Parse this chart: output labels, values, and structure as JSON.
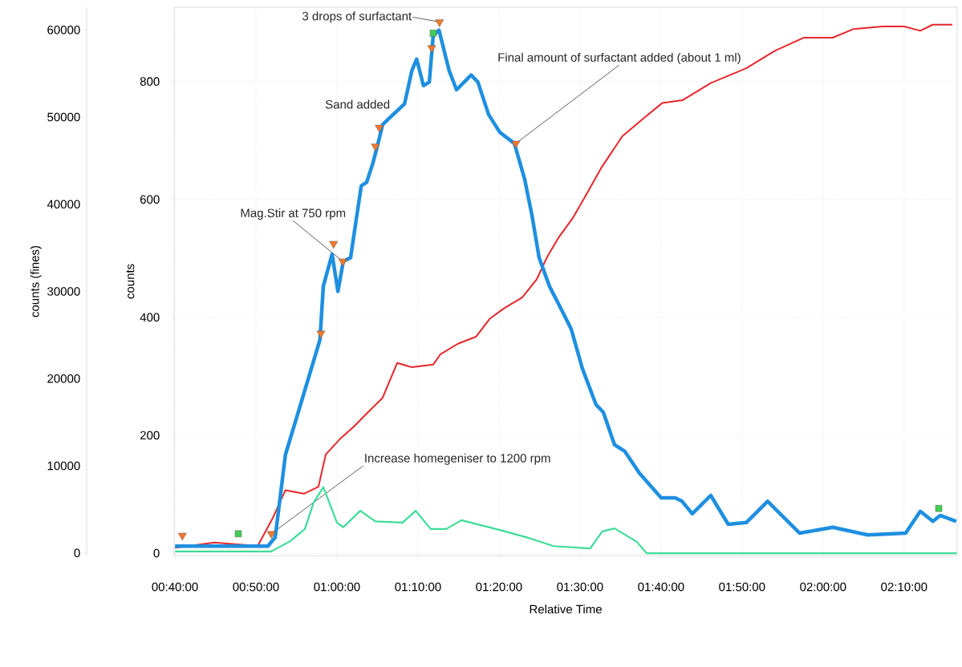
{
  "chart_data": {
    "type": "line",
    "xlabel": "Relative Time",
    "ylabel": "counts",
    "y2label": "counts (fines)",
    "grid": true,
    "xlim": [
      0.665,
      2.276
    ],
    "xticks": [
      {
        "value": 0.6667,
        "label": "00:40:00"
      },
      {
        "value": 0.8333,
        "label": "00:50:00"
      },
      {
        "value": 1.0,
        "label": "01:00:00"
      },
      {
        "value": 1.1667,
        "label": "01:10:00"
      },
      {
        "value": 1.3333,
        "label": "01:20:00"
      },
      {
        "value": 1.5,
        "label": "01:30:00"
      },
      {
        "value": 1.6667,
        "label": "01:40:00"
      },
      {
        "value": 1.8333,
        "label": "01:50:00"
      },
      {
        "value": 2.0,
        "label": "02:00:00"
      },
      {
        "value": 2.1667,
        "label": "02:10:00"
      }
    ],
    "ylim": [
      -4,
      926
    ],
    "yticks": [
      0,
      200,
      400,
      600,
      800
    ],
    "y2lim": [
      -300,
      62600
    ],
    "y2ticks": [
      0,
      10000,
      20000,
      30000,
      40000,
      50000,
      60000
    ],
    "series": [
      {
        "axis": "y2",
        "color": "#e8262b",
        "x": [
          0.667,
          0.748,
          0.837,
          0.867,
          0.894,
          0.932,
          0.962,
          0.977,
          1.005,
          1.035,
          1.065,
          1.094,
          1.124,
          1.154,
          1.198,
          1.213,
          1.249,
          1.286,
          1.315,
          1.345,
          1.381,
          1.411,
          1.432,
          1.455,
          1.485,
          1.515,
          1.543,
          1.587,
          1.632,
          1.669,
          1.707,
          1.71,
          1.769,
          1.842,
          1.901,
          1.96,
          2.02,
          2.063,
          2.122,
          2.167,
          2.2,
          2.226,
          2.266
        ],
        "values": [
          600,
          1200,
          800,
          3900,
          7200,
          6800,
          7600,
          11300,
          13000,
          14500,
          16200,
          17800,
          21800,
          21300,
          21600,
          22800,
          24000,
          24800,
          26900,
          28100,
          29300,
          31400,
          33900,
          36100,
          38400,
          41300,
          44100,
          47800,
          49900,
          51600,
          51900,
          51900,
          53900,
          55600,
          57600,
          59100,
          59100,
          60100,
          60400,
          60400,
          59900,
          60600,
          60600
        ]
      },
      {
        "axis": "y",
        "color": "#3ddc97",
        "x": [
          0.667,
          0.865,
          0.903,
          0.934,
          0.952,
          0.972,
          1.0,
          1.013,
          1.048,
          1.079,
          1.135,
          1.162,
          1.193,
          1.225,
          1.256,
          1.332,
          1.394,
          1.446,
          1.521,
          1.546,
          1.571,
          1.616,
          1.637,
          2.275
        ],
        "values": [
          3,
          3,
          20,
          41,
          86,
          112,
          52,
          44,
          72,
          54,
          52,
          72,
          41,
          41,
          56,
          40,
          26,
          12,
          8,
          37,
          42,
          20,
          0,
          0
        ]
      },
      {
        "axis": "y",
        "color": "#1e8fe0",
        "x": [
          0.667,
          0.858,
          0.873,
          0.894,
          0.932,
          0.965,
          0.972,
          0.99,
          1.002,
          1.013,
          1.028,
          1.05,
          1.061,
          1.073,
          1.083,
          1.094,
          1.109,
          1.139,
          1.154,
          1.164,
          1.178,
          1.19,
          1.198,
          1.21,
          1.231,
          1.246,
          1.276,
          1.29,
          1.312,
          1.335,
          1.365,
          1.386,
          1.401,
          1.416,
          1.437,
          1.46,
          1.482,
          1.505,
          1.533,
          1.548,
          1.571,
          1.592,
          1.622,
          1.667,
          1.696,
          1.71,
          1.731,
          1.769,
          1.805,
          1.842,
          1.886,
          1.952,
          2.02,
          2.092,
          2.17,
          2.2,
          2.226,
          2.241,
          2.274
        ],
        "values": [
          12,
          12,
          27,
          167,
          271,
          362,
          453,
          507,
          444,
          495,
          501,
          623,
          629,
          659,
          690,
          727,
          739,
          762,
          818,
          838,
          793,
          799,
          878,
          887,
          818,
          786,
          811,
          799,
          744,
          714,
          695,
          635,
          574,
          501,
          453,
          416,
          380,
          313,
          252,
          239,
          184,
          173,
          136,
          94,
          94,
          88,
          67,
          98,
          49,
          52,
          88,
          34,
          44,
          31,
          34,
          71,
          54,
          64,
          54
        ]
      },
      {
        "type": "scatter",
        "axis": "y",
        "color": "#f07830",
        "marker": "triangle",
        "x": [
          0.682,
          0.865,
          0.967,
          0.993,
          1.012,
          1.079,
          1.087,
          1.195,
          1.211,
          1.368
        ],
        "values": [
          30,
          33,
          373,
          525,
          495,
          690,
          722,
          857,
          901,
          695
        ]
      },
      {
        "type": "scatter",
        "axis": "y",
        "color": "#44cc55",
        "marker": "square",
        "x": [
          0.797,
          1.198,
          2.238
        ],
        "values": [
          33,
          882,
          76
        ]
      }
    ],
    "annotations": [
      {
        "text": "3 drops of surfactant",
        "x": 1.211,
        "y": 901
      },
      {
        "text": "Final amount of surfactant added (about 1 ml)",
        "x": 1.368,
        "y": 695
      },
      {
        "text": "Sand added",
        "x": 1.087,
        "y": 722
      },
      {
        "text": "Mag.Stir at 750 rpm",
        "x": 1.012,
        "y": 495
      },
      {
        "text": "Increase homegeniser to 1200 rpm",
        "x": 0.865,
        "y": 33
      }
    ]
  }
}
